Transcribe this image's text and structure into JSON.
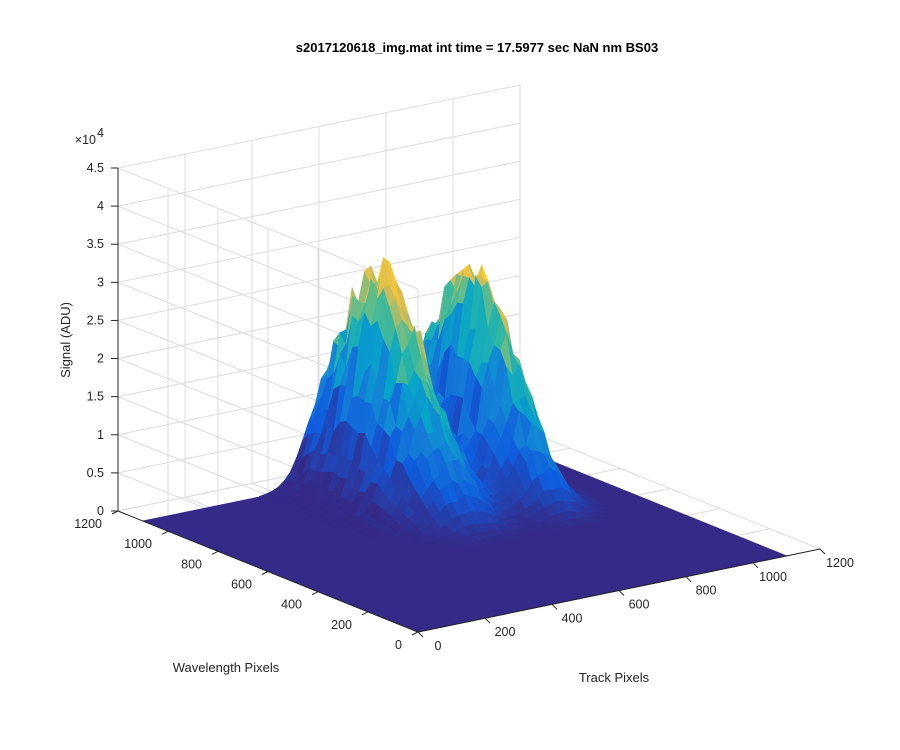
{
  "chart_data": {
    "type": "surface",
    "title": "s2017120618_img.mat int time = 17.5977 sec  NaN nm BS03",
    "xlabel": "Track Pixels",
    "ylabel": "Wavelength Pixels",
    "zlabel": "Signal (ADU)",
    "z_exponent_label": "×10",
    "z_exponent": "4",
    "xlim": [
      0,
      1200
    ],
    "ylim": [
      0,
      1200
    ],
    "zlim": [
      0,
      45000
    ],
    "x_ticks": [
      0,
      200,
      400,
      600,
      800,
      1000,
      1200
    ],
    "y_ticks": [
      0,
      200,
      400,
      600,
      800,
      1000,
      1200
    ],
    "z_tick_labels": [
      "0",
      "0.5",
      "1",
      "1.5",
      "2",
      "2.5",
      "3",
      "3.5",
      "4",
      "4.5"
    ],
    "data_extent": {
      "x": [
        0,
        1100
      ],
      "y": [
        0,
        1100
      ]
    },
    "grid": true,
    "colormap": "parula",
    "colors": [
      "#352a87",
      "#0f5cdd",
      "#1481d6",
      "#06a4ca",
      "#2eb7a4",
      "#87bf77",
      "#d1bb59",
      "#fec832",
      "#f9fb0e"
    ],
    "peaks": [
      {
        "x": 580,
        "y_start": 450,
        "y_end": 1100,
        "peak": 33000,
        "center_y": 920,
        "width_x": 150
      },
      {
        "x": 830,
        "y_start": 450,
        "y_end": 1100,
        "peak": 31500,
        "center_y": 890,
        "width_x": 120
      }
    ]
  }
}
